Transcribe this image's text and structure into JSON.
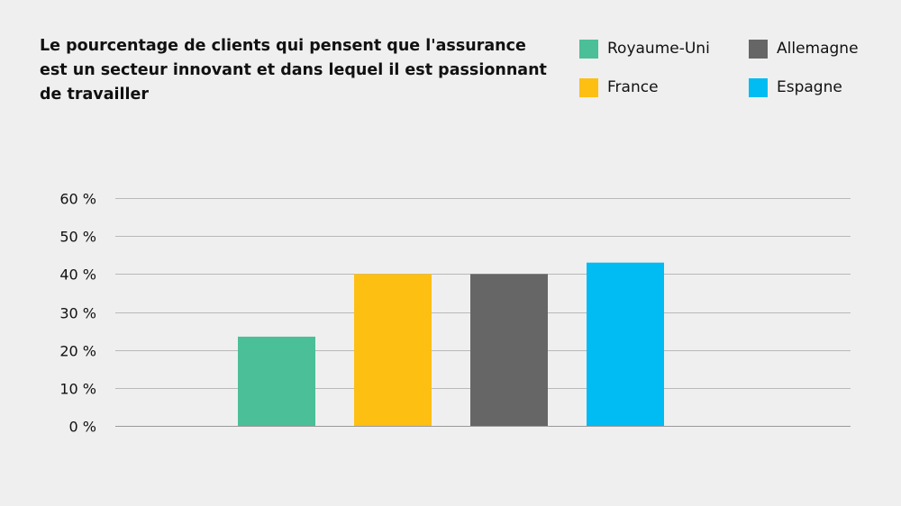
{
  "chart_data": {
    "type": "bar",
    "title_lines": [
      "Le pourcentage de clients qui pensent que l'assurance",
      "est un secteur innovant et dans lequel il est passionnant",
      "de travailler"
    ],
    "categories": [
      "Royaume-Uni",
      "France",
      "Allemagne",
      "Espagne"
    ],
    "values": [
      23.5,
      40,
      40,
      43
    ],
    "colors": [
      "#4bbf98",
      "#fdbf12",
      "#666666",
      "#00bcf2"
    ],
    "ylim": [
      0,
      60
    ],
    "y_ticks": [
      "0 %",
      "10 %",
      "20 %",
      "30 %",
      "40 %",
      "50 %",
      "60 %"
    ],
    "y_tick_values": [
      0,
      10,
      20,
      30,
      40,
      50,
      60
    ],
    "grid": true,
    "legend_position": "top-right",
    "legend": [
      {
        "label": "Royaume-Uni",
        "color": "#4bbf98"
      },
      {
        "label": "Allemagne",
        "color": "#666666"
      },
      {
        "label": "France",
        "color": "#fdbf12"
      },
      {
        "label": "Espagne",
        "color": "#00bcf2"
      }
    ]
  }
}
